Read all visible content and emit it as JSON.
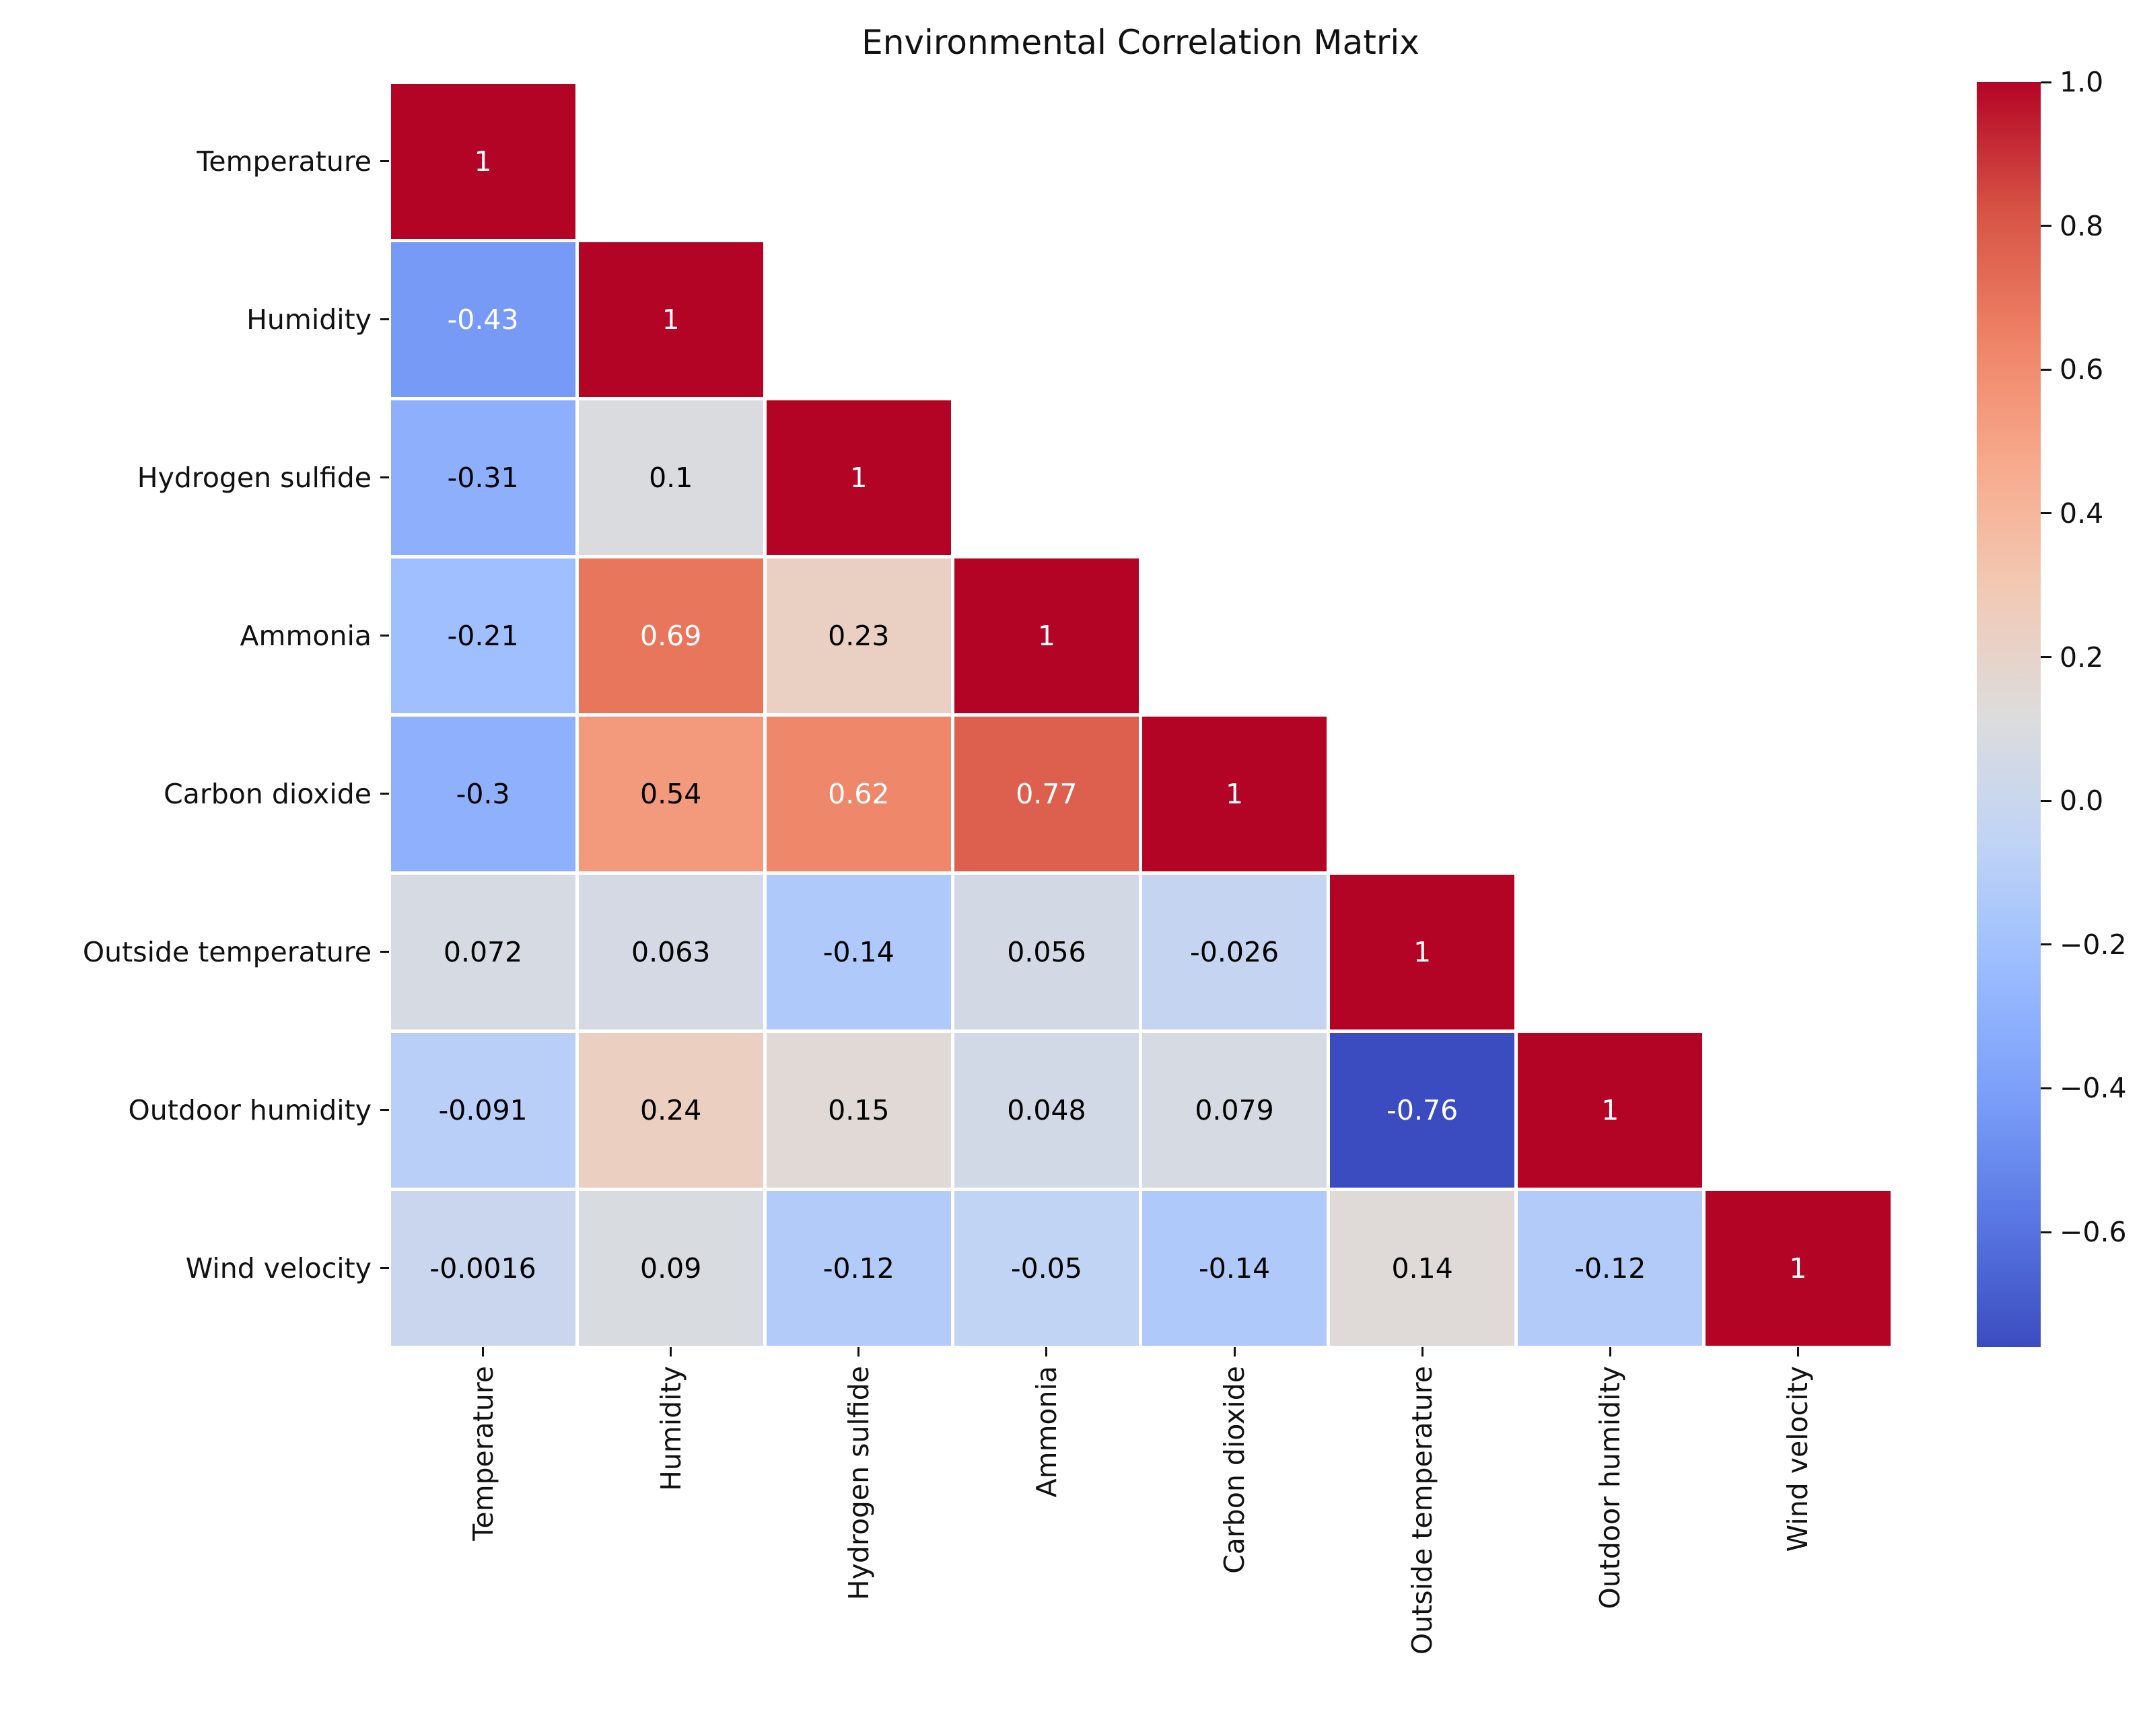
{
  "chart_data": {
    "type": "heatmap",
    "title": "Environmental Correlation Matrix",
    "categories": [
      "Temperature",
      "Humidity",
      "Hydrogen sulfide",
      "Ammonia",
      "Carbon dioxide",
      "Outside temperature",
      "Outdoor humidity",
      "Wind velocity"
    ],
    "rows": [
      [
        "1"
      ],
      [
        "-0.43",
        "1"
      ],
      [
        "-0.31",
        "0.1",
        "1"
      ],
      [
        "-0.21",
        "0.69",
        "0.23",
        "1"
      ],
      [
        "-0.3",
        "0.54",
        "0.62",
        "0.77",
        "1"
      ],
      [
        "0.072",
        "0.063",
        "-0.14",
        "0.056",
        "-0.026",
        "1"
      ],
      [
        "-0.091",
        "0.24",
        "0.15",
        "0.048",
        "0.079",
        "-0.76",
        "1"
      ],
      [
        "-0.0016",
        "0.09",
        "-0.12",
        "-0.05",
        "-0.14",
        "0.14",
        "-0.12",
        "1"
      ]
    ],
    "colormap": {
      "name": "coolwarm",
      "vmin": -0.76,
      "vmax": 1.0,
      "stops": [
        "#3b4cc0",
        "#5977e3",
        "#7b9ff9",
        "#9bbcff",
        "#c0d4f5",
        "#dddcdc",
        "#f2c9b4",
        "#f7a98b",
        "#ee8165",
        "#d65244",
        "#b40426"
      ]
    },
    "annotation_text_colors": {
      "dark": "#000000",
      "light": "#ffffff"
    },
    "colorbar": {
      "position": "right",
      "ticks": [
        {
          "value": 1.0,
          "label": "1.0"
        },
        {
          "value": 0.8,
          "label": "0.8"
        },
        {
          "value": 0.6,
          "label": "0.6"
        },
        {
          "value": 0.4,
          "label": "0.4"
        },
        {
          "value": 0.2,
          "label": "0.2"
        },
        {
          "value": 0.0,
          "label": "0.0"
        },
        {
          "value": -0.2,
          "label": "−0.2"
        },
        {
          "value": -0.4,
          "label": "−0.4"
        },
        {
          "value": -0.6,
          "label": "−0.6"
        }
      ]
    },
    "layout_hints": {
      "triangle": "lower",
      "grid": "off",
      "cell_gap_color": "#ffffff"
    }
  }
}
